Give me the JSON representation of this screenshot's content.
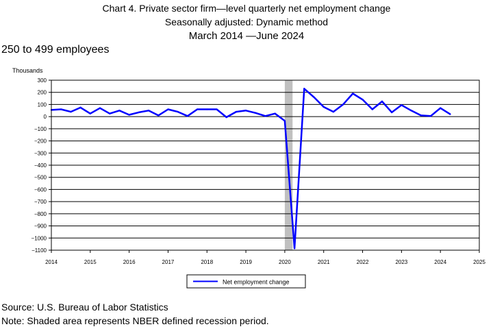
{
  "header": {
    "title_line1": "Chart 4. Private sector firm—level quarterly net employment change",
    "title_line2": "Seasonally adjusted: Dynamic method",
    "title_line3": "March 2014 —June 2024",
    "subtitle": "250 to 499 employees",
    "units_label": "Thousands"
  },
  "footer": {
    "source": "Source: U.S. Bureau of Labor Statistics",
    "note": "Note: Shaded area represents NBER defined recession period."
  },
  "chart_data": {
    "type": "line",
    "title": "Chart 4. Private sector firm—level quarterly net employment change",
    "ylabel": "Thousands",
    "xlabel": "",
    "xlim": [
      2014,
      2025
    ],
    "ylim": [
      -1100,
      300
    ],
    "y_ticks": [
      300,
      200,
      100,
      0,
      -100,
      -200,
      -300,
      -400,
      -500,
      -600,
      -700,
      -800,
      -900,
      -1000,
      -1100
    ],
    "y_tick_labels": [
      "300",
      "200",
      "100",
      "0",
      "−100",
      "−200",
      "−300",
      "−400",
      "−500",
      "−600",
      "−700",
      "−800",
      "−900",
      "−1000",
      "−1100"
    ],
    "x_ticks": [
      2014,
      2015,
      2016,
      2017,
      2018,
      2019,
      2020,
      2021,
      2022,
      2023,
      2024,
      2025
    ],
    "x_tick_labels": [
      "2014",
      "2015",
      "2016",
      "2017",
      "2018",
      "2019",
      "2020",
      "2021",
      "2022",
      "2023",
      "2024",
      "2025"
    ],
    "grid": "horizontal",
    "legend_position": "bottom-center",
    "recession": {
      "start": 2020.0,
      "end": 2020.2,
      "color": "#c0c0c0"
    },
    "series": [
      {
        "name": "Net employment change",
        "color": "#0000ff",
        "x": [
          2014.0,
          2014.25,
          2014.5,
          2014.75,
          2015.0,
          2015.25,
          2015.5,
          2015.75,
          2016.0,
          2016.25,
          2016.5,
          2016.75,
          2017.0,
          2017.25,
          2017.5,
          2017.75,
          2018.0,
          2018.25,
          2018.5,
          2018.75,
          2019.0,
          2019.25,
          2019.5,
          2019.75,
          2020.0,
          2020.25,
          2020.5,
          2020.75,
          2021.0,
          2021.25,
          2021.5,
          2021.75,
          2022.0,
          2022.25,
          2022.5,
          2022.75,
          2023.0,
          2023.25,
          2023.5,
          2023.75,
          2024.0,
          2024.25
        ],
        "values": [
          55,
          60,
          40,
          75,
          25,
          70,
          25,
          50,
          15,
          35,
          50,
          10,
          60,
          40,
          5,
          60,
          60,
          60,
          -5,
          40,
          50,
          30,
          5,
          25,
          -35,
          -1085,
          230,
          160,
          80,
          40,
          100,
          190,
          140,
          60,
          125,
          35,
          95,
          50,
          10,
          5,
          70,
          20
        ]
      }
    ]
  }
}
